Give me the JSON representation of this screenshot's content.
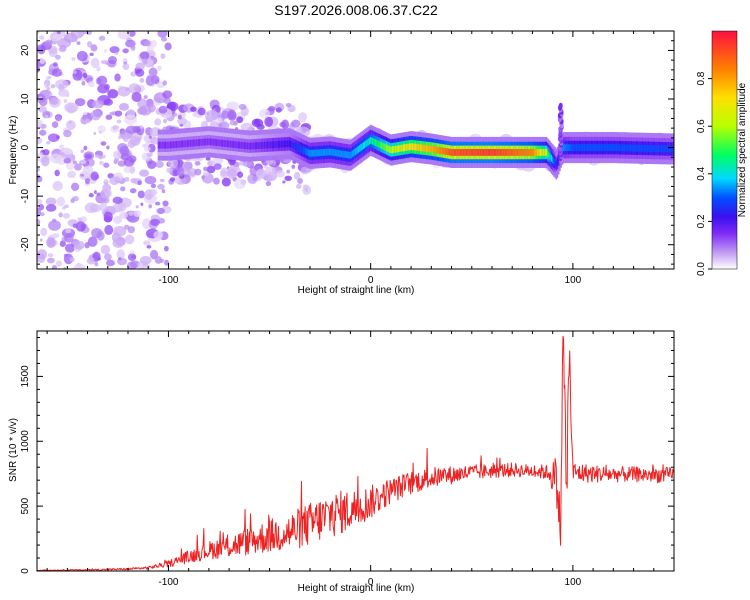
{
  "figure_title": "S197.2026.008.06.37.C22",
  "colors": {
    "snr_line": "#ee2222",
    "axis": "#000000",
    "background": "#ffffff"
  },
  "chart_data": [
    {
      "type": "heatmap",
      "title": "S197.2026.008.06.37.C22",
      "xlabel": "Height of straight line (km)",
      "ylabel": "Frequency (Hz)",
      "xlim": [
        -165,
        150
      ],
      "ylim": [
        -25,
        24
      ],
      "x_ticks": [
        -100,
        0,
        100
      ],
      "y_ticks": [
        -20,
        -10,
        0,
        10,
        20
      ],
      "colorbar": {
        "label": "Normalized spectral amplitude",
        "range": [
          0,
          1
        ],
        "ticks": [
          "0.0",
          "0.2",
          "0.4",
          "0.6",
          "0.8"
        ],
        "tick_values": [
          0.0,
          0.2,
          0.4,
          0.6,
          0.8
        ],
        "colormap": [
          "#ffffff",
          "#c9a8f4",
          "#7f2bf5",
          "#3a10f0",
          "#0050ff",
          "#00d8ff",
          "#00ff60",
          "#b8ff00",
          "#ffe000",
          "#ff8000",
          "#ff1040"
        ]
      },
      "ridge": {
        "description": "dominant frequency track",
        "points": [
          [
            -100,
            0.5
          ],
          [
            -80,
            1.2
          ],
          [
            -60,
            0.3
          ],
          [
            -40,
            0.8
          ],
          [
            -30,
            -1.2
          ],
          [
            -20,
            -0.9
          ],
          [
            -10,
            -1.6
          ],
          [
            0,
            1.5
          ],
          [
            10,
            -0.5
          ],
          [
            20,
            0.2
          ],
          [
            30,
            -0.3
          ],
          [
            40,
            -1
          ],
          [
            60,
            -1
          ],
          [
            80,
            -1
          ],
          [
            87,
            -1
          ],
          [
            92,
            -3.5
          ],
          [
            95,
            0
          ],
          [
            100,
            0
          ],
          [
            120,
            0
          ],
          [
            150,
            -0.3
          ]
        ],
        "amplitude": [
          0.2,
          0.2,
          0.22,
          0.3,
          0.45,
          0.45,
          0.45,
          0.55,
          0.7,
          0.8,
          0.85,
          0.95,
          0.97,
          0.9,
          0.7,
          0.3,
          0.45,
          0.4,
          0.4,
          0.38
        ]
      }
    },
    {
      "type": "line",
      "xlabel": "Height of straight line (km)",
      "ylabel": "SNR (10 * v/v)",
      "xlim": [
        -165,
        150
      ],
      "ylim": [
        0,
        1850
      ],
      "x_ticks": [
        -100,
        0,
        100
      ],
      "y_ticks": [
        0,
        500,
        1000,
        1500
      ],
      "series": [
        {
          "name": "SNR",
          "x": [
            -165,
            -140,
            -120,
            -110,
            -100,
            -90,
            -80,
            -70,
            -60,
            -50,
            -40,
            -30,
            -20,
            -10,
            0,
            10,
            20,
            30,
            40,
            50,
            60,
            70,
            80,
            88,
            92,
            94,
            95,
            96,
            97,
            98,
            100,
            110,
            120,
            130,
            140,
            150
          ],
          "y": [
            5,
            8,
            15,
            25,
            55,
            110,
            160,
            190,
            230,
            270,
            300,
            360,
            430,
            470,
            530,
            620,
            680,
            720,
            740,
            760,
            770,
            780,
            770,
            760,
            700,
            300,
            1850,
            1300,
            500,
            1700,
            760,
            750,
            745,
            745,
            740,
            740
          ],
          "noise": [
            3,
            5,
            8,
            10,
            25,
            50,
            70,
            90,
            110,
            130,
            150,
            170,
            180,
            160,
            130,
            100,
            90,
            80,
            70,
            60,
            55,
            55,
            50,
            60,
            200,
            200,
            250,
            250,
            250,
            250,
            80,
            70,
            60,
            60,
            60,
            60
          ]
        }
      ]
    }
  ]
}
